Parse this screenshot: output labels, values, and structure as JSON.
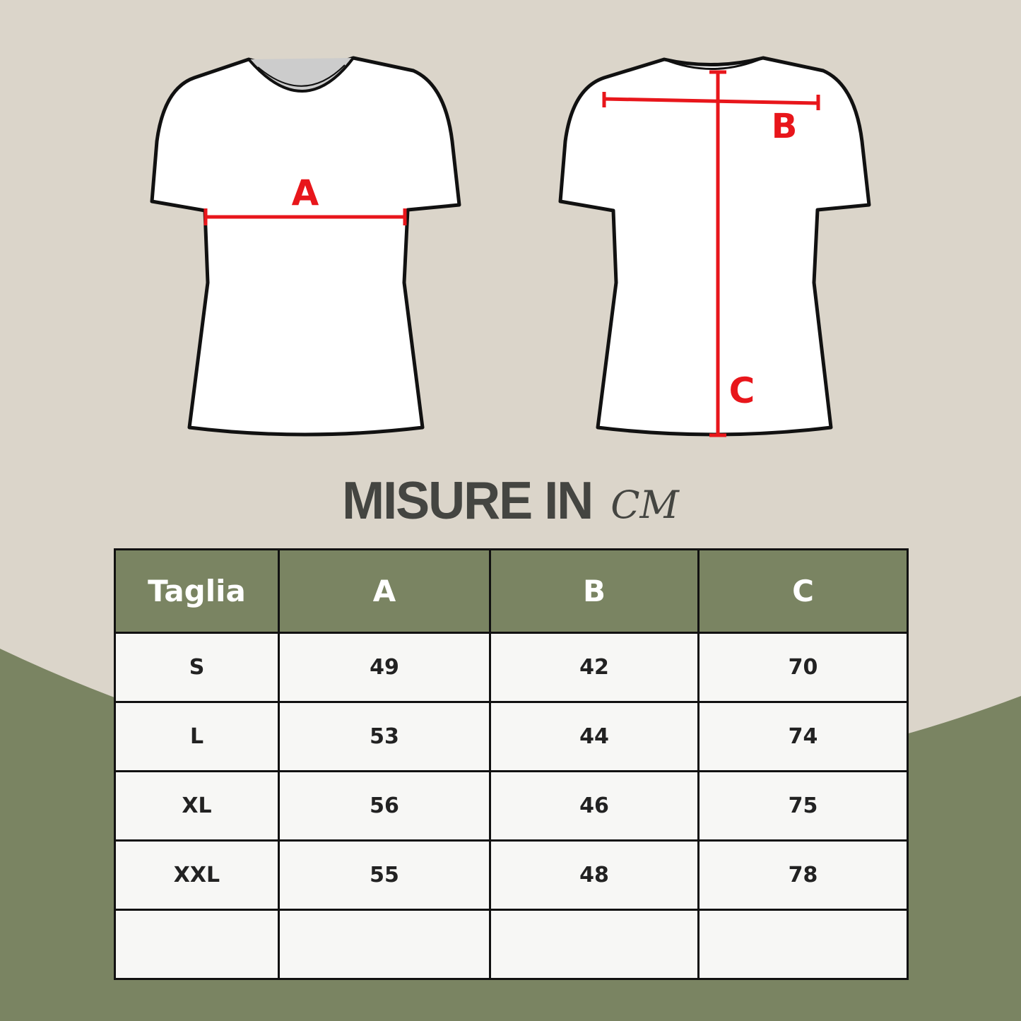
{
  "colors": {
    "background": "#dbd5ca",
    "accent_green": "#7a8462",
    "measure_red": "#e8161b"
  },
  "diagram": {
    "front_labels": [
      "A"
    ],
    "back_labels": [
      "B",
      "C"
    ]
  },
  "title": {
    "main": "MISURE IN",
    "unit": "CM"
  },
  "table": {
    "headers": [
      "Taglia",
      "A",
      "B",
      "C"
    ],
    "rows": [
      [
        "S",
        "49",
        "42",
        "70"
      ],
      [
        "L",
        "53",
        "44",
        "74"
      ],
      [
        "XL",
        "56",
        "46",
        "75"
      ],
      [
        "XXL",
        "55",
        "48",
        "78"
      ],
      [
        "",
        "",
        "",
        ""
      ]
    ]
  }
}
